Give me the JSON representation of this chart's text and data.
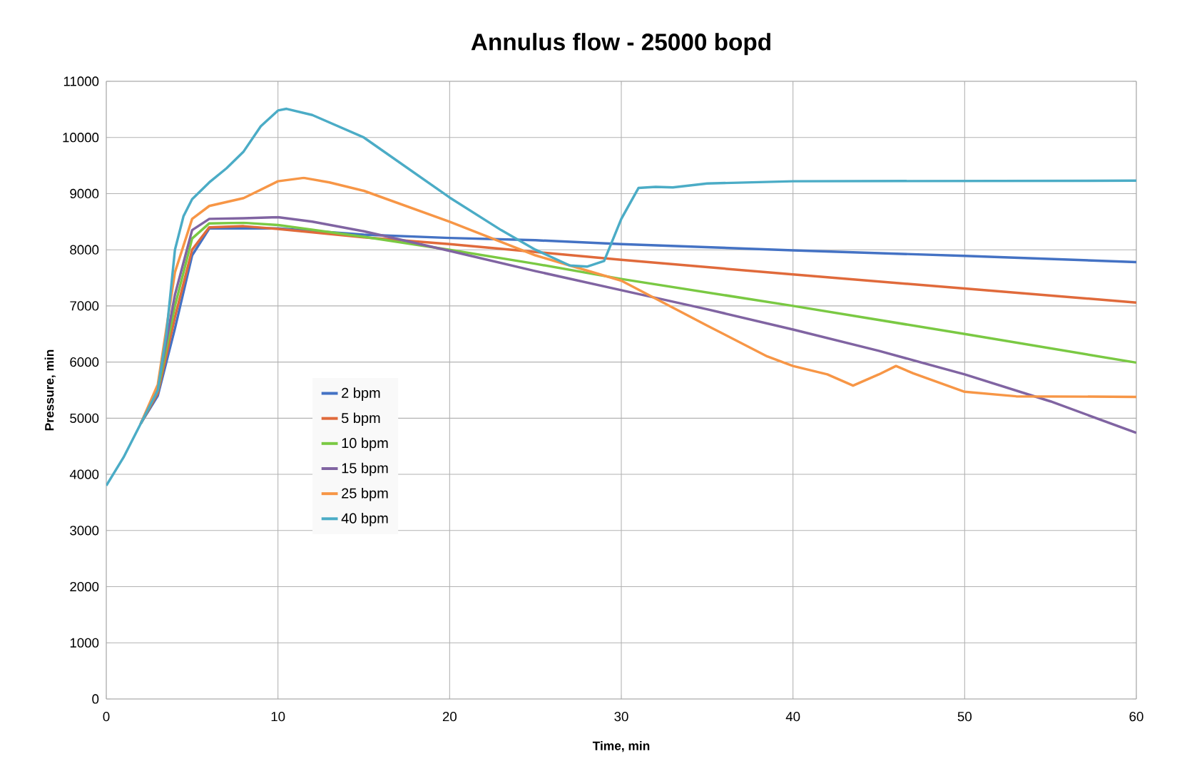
{
  "chart_data": {
    "type": "line",
    "title": "Annulus flow - 25000 bopd",
    "xlabel": "Time, min",
    "ylabel": "Pressure, min",
    "xlim": [
      0,
      60
    ],
    "xticks": [
      0,
      10,
      20,
      30,
      40,
      50,
      60
    ],
    "ylim": [
      0,
      11000
    ],
    "yticks": [
      0,
      1000,
      2000,
      3000,
      4000,
      5000,
      6000,
      7000,
      8000,
      9000,
      10000,
      11000
    ],
    "grid": true,
    "legend": "left",
    "marker": "none",
    "line_style": "solid",
    "series": [
      {
        "name": "2 bpm",
        "color": "#4472c4",
        "x": [
          2,
          3,
          4,
          5,
          6,
          10,
          15,
          20,
          25,
          30,
          40,
          50,
          60
        ],
        "values": [
          4900,
          5400,
          6600,
          7900,
          8380,
          8380,
          8270,
          8210,
          8170,
          8100,
          7990,
          7890,
          7780
        ]
      },
      {
        "name": "5 bpm",
        "color": "#e06a3b",
        "x": [
          2,
          3,
          4,
          5,
          6,
          8,
          10,
          15,
          20,
          30,
          40,
          50,
          60
        ],
        "values": [
          4900,
          5450,
          6800,
          8000,
          8400,
          8420,
          8370,
          8220,
          8100,
          7820,
          7560,
          7310,
          7060
        ]
      },
      {
        "name": "10 bpm",
        "color": "#7ac943",
        "x": [
          2,
          3,
          4,
          5,
          6,
          8,
          10,
          15,
          20,
          25,
          30,
          40,
          50,
          60
        ],
        "values": [
          4900,
          5500,
          7000,
          8200,
          8470,
          8480,
          8440,
          8230,
          8000,
          7750,
          7480,
          7000,
          6500,
          5990
        ]
      },
      {
        "name": "15 bpm",
        "color": "#8064a2",
        "x": [
          2,
          3,
          4,
          5,
          6,
          8,
          10,
          12,
          15,
          20,
          25,
          30,
          35,
          40,
          45,
          50,
          55,
          60
        ],
        "values": [
          4900,
          5550,
          7200,
          8350,
          8550,
          8560,
          8580,
          8500,
          8330,
          7980,
          7620,
          7280,
          6940,
          6580,
          6200,
          5780,
          5300,
          4740
        ]
      },
      {
        "name": "25 bpm",
        "color": "#f79646",
        "x": [
          2,
          3,
          4,
          5,
          6,
          8,
          10,
          11.5,
          13,
          15,
          20,
          25,
          30,
          35,
          38.5,
          40,
          42,
          43.5,
          45,
          46,
          47,
          50,
          53,
          60
        ],
        "values": [
          4900,
          5600,
          7600,
          8550,
          8780,
          8920,
          9220,
          9280,
          9200,
          9050,
          8500,
          7900,
          7450,
          6650,
          6100,
          5930,
          5780,
          5580,
          5780,
          5930,
          5800,
          5470,
          5390,
          5380
        ]
      },
      {
        "name": "40 bpm",
        "color": "#4bacc6",
        "x": [
          0,
          1,
          2,
          3,
          3.5,
          4,
          4.5,
          5,
          6,
          7,
          8,
          9,
          10,
          10.5,
          12,
          15,
          20,
          23,
          25,
          27,
          28,
          29,
          30,
          31,
          32,
          33,
          35,
          40,
          60
        ],
        "values": [
          3800,
          4300,
          4900,
          5500,
          6500,
          8000,
          8600,
          8900,
          9200,
          9450,
          9750,
          10200,
          10480,
          10510,
          10400,
          10000,
          8930,
          8350,
          8000,
          7720,
          7700,
          7800,
          8550,
          9100,
          9120,
          9110,
          9180,
          9220,
          9230
        ]
      }
    ]
  }
}
